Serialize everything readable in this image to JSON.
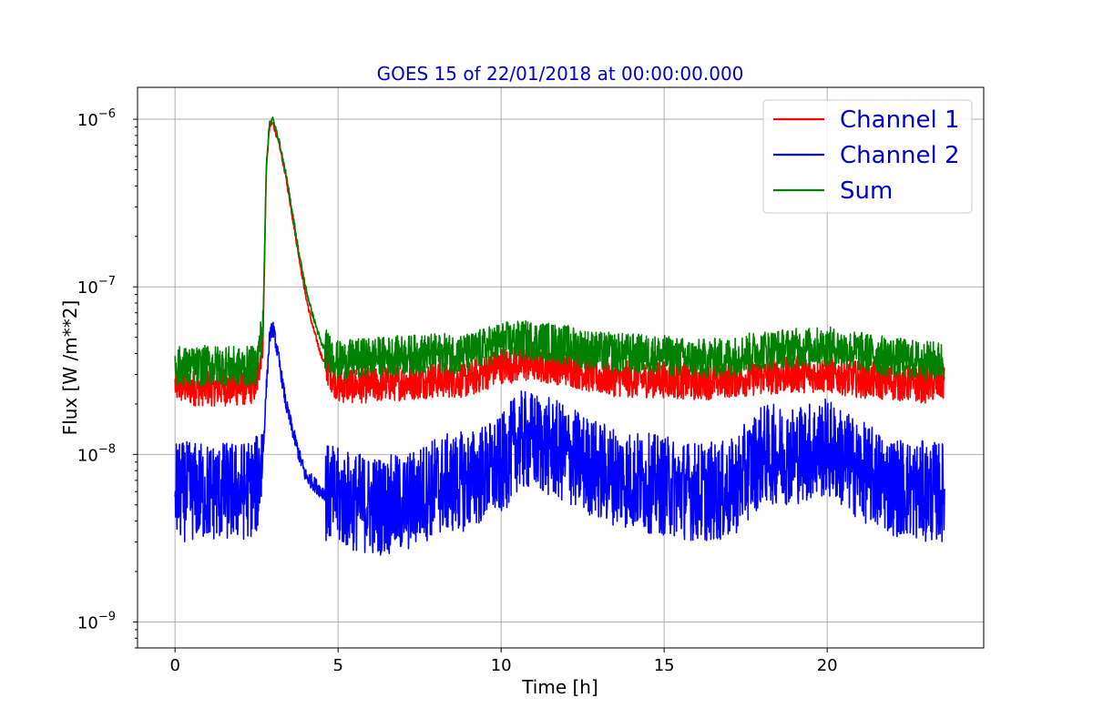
{
  "chart_data": {
    "type": "line",
    "title": "GOES 15 of 22/01/2018 at 00:00:00.000",
    "title_color": "#0000cc",
    "xlabel": "Time [h]",
    "ylabel": "Flux [W /m**2]",
    "x_scale": "linear",
    "y_scale": "log",
    "xlim": [
      -1.15,
      24.8
    ],
    "ylim": [
      7e-10,
      1.55e-06
    ],
    "x_ticks": [
      {
        "value": 0,
        "label": "0"
      },
      {
        "value": 5,
        "label": "5"
      },
      {
        "value": 10,
        "label": "10"
      },
      {
        "value": 15,
        "label": "15"
      },
      {
        "value": 20,
        "label": "20"
      }
    ],
    "y_ticks": [
      {
        "value": 1e-09,
        "base": "10",
        "exp": "−9"
      },
      {
        "value": 1e-08,
        "base": "10",
        "exp": "−8"
      },
      {
        "value": 1e-07,
        "base": "10",
        "exp": "−7"
      },
      {
        "value": 1e-06,
        "base": "10",
        "exp": "−6"
      }
    ],
    "grid": true,
    "legend_position": "top-right",
    "legend_text_color": "#0000cc",
    "series": [
      {
        "name": "Channel 1",
        "color": "#ff0000",
        "x": [
          0,
          0.5,
          1.0,
          1.5,
          2.0,
          2.5,
          2.7,
          2.8,
          2.9,
          3.0,
          3.2,
          3.4,
          3.6,
          3.8,
          4.0,
          4.2,
          4.5,
          5.0,
          6.0,
          7.0,
          8.0,
          9.0,
          10.0,
          11.0,
          12.0,
          13.0,
          14.0,
          15.0,
          16.0,
          17.0,
          18.0,
          19.0,
          20.0,
          21.0,
          22.0,
          23.0,
          23.6
        ],
        "y": [
          2.6e-08,
          2.5e-08,
          2.5e-08,
          2.5e-08,
          2.5e-08,
          2.6e-08,
          5e-08,
          5e-07,
          9e-07,
          9.5e-07,
          7e-07,
          4.5e-07,
          2.6e-07,
          1.5e-07,
          9e-08,
          6e-08,
          3.8e-08,
          2.6e-08,
          2.6e-08,
          2.7e-08,
          2.8e-08,
          2.8e-08,
          3.4e-08,
          3.5e-08,
          3.3e-08,
          2.9e-08,
          2.8e-08,
          2.8e-08,
          2.7e-08,
          2.8e-08,
          2.9e-08,
          3e-08,
          3e-08,
          2.8e-08,
          2.7e-08,
          2.6e-08,
          2.7e-08
        ],
        "noise": 0.11
      },
      {
        "name": "Channel 2",
        "color": "#0000ff",
        "x": [
          0,
          0.5,
          1.0,
          1.5,
          2.0,
          2.5,
          2.7,
          2.8,
          2.9,
          3.0,
          3.2,
          3.4,
          3.6,
          3.8,
          4.0,
          4.5,
          5.0,
          6.0,
          7.0,
          8.0,
          9.0,
          10.0,
          10.5,
          11.0,
          12.0,
          13.0,
          14.0,
          15.0,
          16.0,
          17.0,
          18.0,
          19.0,
          20.0,
          21.0,
          22.0,
          23.0,
          23.6
        ],
        "y": [
          6e-09,
          6e-09,
          6e-09,
          6e-09,
          6e-09,
          6.5e-09,
          1e-08,
          2.5e-08,
          5e-08,
          5.8e-08,
          3.5e-08,
          2e-08,
          1.4e-08,
          1e-08,
          7.5e-09,
          6e-09,
          5.5e-09,
          5e-09,
          5e-09,
          6.5e-09,
          7e-09,
          8.5e-09,
          1.2e-08,
          1.2e-08,
          1e-08,
          8e-09,
          7e-09,
          6.5e-09,
          6e-09,
          6e-09,
          1e-08,
          1e-08,
          1.1e-08,
          8e-09,
          6.5e-09,
          6e-09,
          6e-09
        ],
        "noise": 0.3
      },
      {
        "name": "Sum",
        "color": "#008000",
        "x": [
          0,
          0.5,
          1.0,
          1.5,
          2.0,
          2.5,
          2.7,
          2.8,
          2.9,
          3.0,
          3.2,
          3.4,
          3.6,
          3.8,
          4.0,
          4.2,
          4.5,
          5.0,
          6.0,
          7.0,
          8.0,
          9.0,
          10.0,
          11.0,
          12.0,
          13.0,
          14.0,
          15.0,
          16.0,
          17.0,
          18.0,
          19.0,
          20.0,
          21.0,
          22.0,
          23.0,
          23.6
        ],
        "y": [
          3.4e-08,
          3.3e-08,
          3.4e-08,
          3.4e-08,
          3.3e-08,
          3.4e-08,
          6e-08,
          5.5e-07,
          9.6e-07,
          1e-06,
          7.3e-07,
          4.7e-07,
          2.8e-07,
          1.6e-07,
          1e-07,
          7e-08,
          4.5e-08,
          3.6e-08,
          3.8e-08,
          3.9e-08,
          4e-08,
          4e-08,
          4.7e-08,
          4.8e-08,
          4.5e-08,
          4.1e-08,
          4e-08,
          3.9e-08,
          3.7e-08,
          3.8e-08,
          4.2e-08,
          4.3e-08,
          4.4e-08,
          4.1e-08,
          3.8e-08,
          3.6e-08,
          3.6e-08
        ],
        "noise": 0.12
      }
    ]
  }
}
